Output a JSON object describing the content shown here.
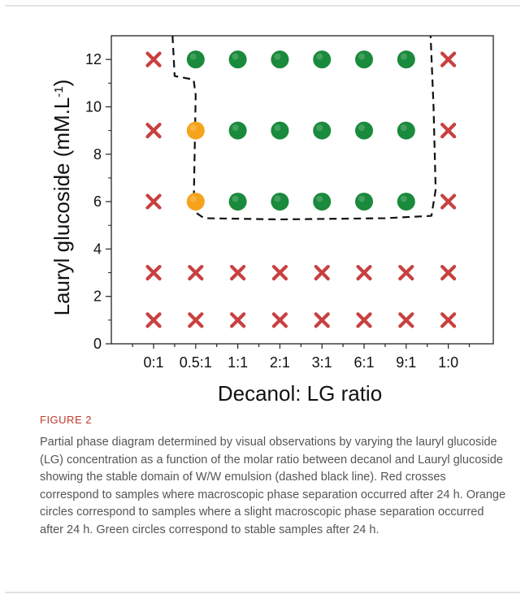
{
  "figure": {
    "label": "FIGURE 2",
    "caption": "Partial phase diagram determined by visual observations by varying the lauryl glucoside (LG) concentration as a function of the molar ratio between decanol and Lauryl glucoside showing the stable domain of W/W emulsion (dashed black line). Red crosses correspond to samples where macroscopic phase separation occurred after 24 h. Orange circles correspond to samples where a slight macroscopic phase separation occurred after 24 h. Green circles correspond to stable samples after 24 h."
  },
  "colors": {
    "unstable": "#c94040",
    "slight": "#f6a31c",
    "stable": "#1a8a3c",
    "outline": "#111111"
  },
  "chart_data": {
    "type": "scatter",
    "xlabel": "Decanol: LG ratio",
    "ylabel_main": "Lauryl glucoside (mM.L",
    "ylabel_sup": "-1",
    "ylabel_close": ")",
    "categories": [
      "0:1",
      "0.5:1",
      "1:1",
      "2:1",
      "3:1",
      "6:1",
      "9:1",
      "1:0"
    ],
    "y_ticks": [
      0,
      2,
      4,
      6,
      8,
      10,
      12
    ],
    "ylim": [
      0,
      13
    ],
    "grid": false,
    "series": [
      {
        "marker": "cross",
        "color": "#c94040",
        "points": [
          [
            "0:1",
            12
          ],
          [
            "0:1",
            9
          ],
          [
            "0:1",
            6
          ],
          [
            "0:1",
            3
          ],
          [
            "0:1",
            1
          ],
          [
            "0.5:1",
            3
          ],
          [
            "0.5:1",
            1
          ],
          [
            "1:1",
            3
          ],
          [
            "1:1",
            1
          ],
          [
            "2:1",
            3
          ],
          [
            "2:1",
            1
          ],
          [
            "3:1",
            3
          ],
          [
            "3:1",
            1
          ],
          [
            "6:1",
            3
          ],
          [
            "6:1",
            1
          ],
          [
            "9:1",
            3
          ],
          [
            "9:1",
            1
          ],
          [
            "1:0",
            12
          ],
          [
            "1:0",
            9
          ],
          [
            "1:0",
            6
          ],
          [
            "1:0",
            3
          ],
          [
            "1:0",
            1
          ]
        ]
      },
      {
        "marker": "circle",
        "color": "#f6a31c",
        "points": [
          [
            "0.5:1",
            9
          ],
          [
            "0.5:1",
            6
          ]
        ]
      },
      {
        "marker": "circle",
        "color": "#1a8a3c",
        "points": [
          [
            "0.5:1",
            12
          ],
          [
            "1:1",
            12
          ],
          [
            "1:1",
            9
          ],
          [
            "1:1",
            6
          ],
          [
            "2:1",
            12
          ],
          [
            "2:1",
            9
          ],
          [
            "2:1",
            6
          ],
          [
            "3:1",
            12
          ],
          [
            "3:1",
            9
          ],
          [
            "3:1",
            6
          ],
          [
            "6:1",
            12
          ],
          [
            "6:1",
            9
          ],
          [
            "6:1",
            6
          ],
          [
            "9:1",
            12
          ],
          [
            "9:1",
            9
          ],
          [
            "9:1",
            6
          ]
        ]
      }
    ],
    "stable_domain_boundary": {
      "style": "dashed",
      "points": [
        [
          0.45,
          13
        ],
        [
          0.5,
          11.3
        ],
        [
          0.95,
          11.15
        ],
        [
          1.0,
          10.5
        ],
        [
          0.95,
          5.6
        ],
        [
          1.2,
          5.3
        ],
        [
          3.0,
          5.25
        ],
        [
          5.5,
          5.3
        ],
        [
          6.6,
          5.4
        ],
        [
          6.7,
          6.5
        ],
        [
          6.65,
          10
        ],
        [
          6.58,
          13
        ]
      ]
    }
  }
}
